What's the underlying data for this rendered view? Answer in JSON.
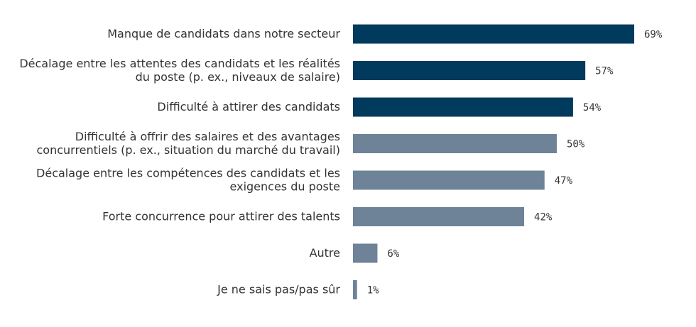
{
  "chart_data": {
    "type": "bar",
    "orientation": "horizontal",
    "categories": [
      [
        "Manque de candidats dans notre secteur"
      ],
      [
        "Décalage entre les attentes des candidats et les réalités",
        "du poste (p. ex., niveaux de salaire)"
      ],
      [
        "Difficulté à attirer des candidats"
      ],
      [
        "Difficulté à offrir des salaires et des avantages",
        "concurrentiels (p. ex., situation du marché du travail)"
      ],
      [
        "Décalage entre les compétences des candidats et les",
        "exigences du poste"
      ],
      [
        "Forte concurrence pour attirer des talents"
      ],
      [
        "Autre"
      ],
      [
        "Je ne sais pas/pas sûr"
      ]
    ],
    "values": [
      69,
      57,
      54,
      50,
      47,
      42,
      6,
      1
    ],
    "value_labels": [
      "69%",
      "57%",
      "54%",
      "50%",
      "47%",
      "42%",
      "6%",
      "1%"
    ],
    "xlim": [
      0,
      69
    ],
    "title": "",
    "xlabel": "",
    "ylabel": "",
    "grid": false,
    "legend": "none",
    "colors": {
      "highlight": "#003A5D",
      "default": "#6E8398",
      "highlight_top_n": 3
    }
  }
}
